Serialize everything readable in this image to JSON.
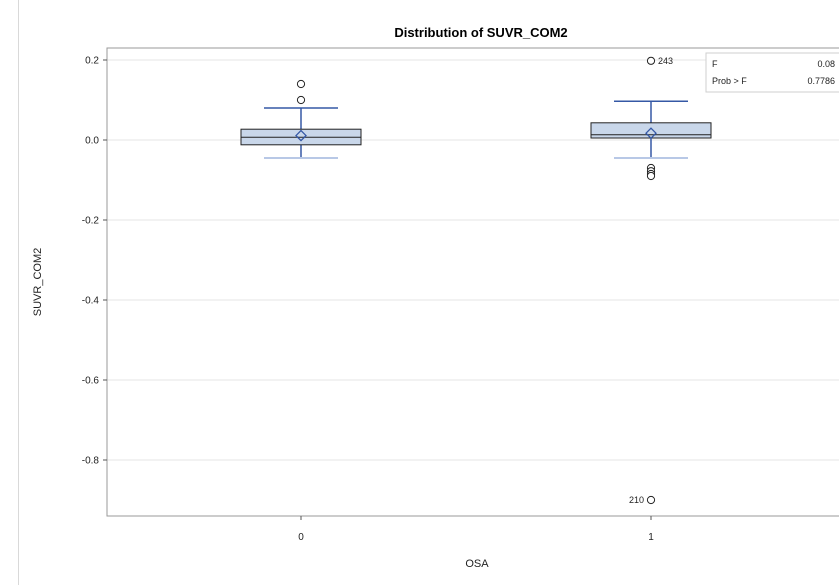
{
  "chart_data": {
    "type": "box",
    "title": "Distribution of SUVR_COM2",
    "xlabel": "OSA",
    "ylabel": "SUVR_COM2",
    "ylim": [
      -0.94,
      0.23
    ],
    "yticks": [
      0.2,
      0.0,
      -0.2,
      -0.4,
      -0.6,
      -0.8
    ],
    "ytick_labels": [
      "0.2",
      "0.0",
      "-0.2",
      "-0.4",
      "-0.6",
      "-0.8"
    ],
    "categories": [
      "0",
      "1"
    ],
    "grid": true,
    "boxes": [
      {
        "category": "0",
        "q1": -0.012,
        "median": 0.007,
        "q3": 0.027,
        "mean": 0.011,
        "whisker_low": -0.045,
        "whisker_high": 0.08,
        "outliers": [
          {
            "value": 0.14,
            "label": ""
          },
          {
            "value": 0.1,
            "label": ""
          }
        ]
      },
      {
        "category": "1",
        "q1": 0.005,
        "median": 0.013,
        "q3": 0.043,
        "mean": 0.017,
        "whisker_low": -0.045,
        "whisker_high": 0.097,
        "outliers": [
          {
            "value": 0.198,
            "label": "243"
          },
          {
            "value": -0.07,
            "label": ""
          },
          {
            "value": -0.078,
            "label": ""
          },
          {
            "value": -0.085,
            "label": ""
          },
          {
            "value": -0.09,
            "label": ""
          },
          {
            "value": -0.9,
            "label": "210"
          }
        ]
      }
    ],
    "stats_inset": {
      "position": "top-right",
      "rows": [
        {
          "label": "F",
          "value": "0.08"
        },
        {
          "label": "Prob > F",
          "value": "0.7786"
        }
      ]
    },
    "colors": {
      "box_fill": "#c9d7ea",
      "box_stroke": "#222222",
      "whisker": "#3558a5",
      "mean_marker": "#3558a5",
      "whisker_low": "#b8c8e6",
      "grid": "#e6e6e6"
    }
  }
}
